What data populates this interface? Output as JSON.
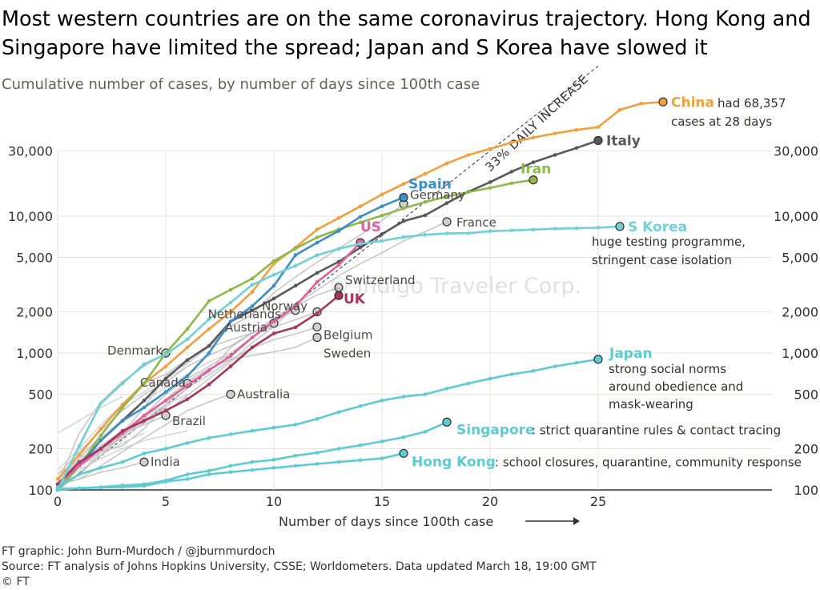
{
  "title": "Most western countries are on the same coronavirus trajectory. Hong Kong and Singapore have limited the spread; Japan and S Korea have slowed it",
  "subtitle": "Cumulative number of cases, by number of days since 100th case",
  "footer": {
    "credit": "FT graphic: John Burn-Murdoch / @jburnmurdoch",
    "source": "Source: FT analysis of Johns Hopkins University, CSSE; Worldometers. Data updated March 18, 19:00 GMT",
    "copyright": "© FT"
  },
  "watermark": "© Indigo Traveler Corp.",
  "colors": {
    "china": "#f2a03d",
    "italy": "#595959",
    "iran": "#8db84a",
    "spain": "#3b8fc4",
    "us": "#e0609b",
    "uk": "#a8355f",
    "korea": "#6fd0d8",
    "japan": "#5ccbd3",
    "grey": "#bdbdbd",
    "reference": "#333333"
  },
  "chart_data": {
    "type": "line",
    "xlabel": "Number of days since 100th case",
    "xlim": [
      0,
      35
    ],
    "ylim": [
      100,
      70000
    ],
    "y_scale": "log",
    "x_ticks": [
      0,
      5,
      10,
      15,
      20,
      25
    ],
    "y_ticks": [
      {
        "value": 100,
        "label": "100"
      },
      {
        "value": 200,
        "label": "200"
      },
      {
        "value": 500,
        "label": "500"
      },
      {
        "value": 1000,
        "label": "1,000"
      },
      {
        "value": 2000,
        "label": "2,000"
      },
      {
        "value": 5000,
        "label": "5,000"
      },
      {
        "value": 10000,
        "label": "10,000"
      },
      {
        "value": 30000,
        "label": "30,000"
      }
    ],
    "reference_line": {
      "label": "33% DAILY INCREASE",
      "growth": 1.33,
      "start": 100
    },
    "annotations": {
      "china": [
        "had 68,357",
        "cases at 28 days"
      ],
      "korea": [
        "huge testing programme,",
        "stringent case isolation"
      ],
      "japan": [
        "strong social norms",
        "around obedience and",
        "mask-wearing"
      ],
      "singapore": ": strict quarantine rules & contact tracing",
      "hongkong": ": school closures, quarantine, community response"
    },
    "series": [
      {
        "key": "china",
        "name": "China",
        "color": "#f2a03d",
        "highlight": true,
        "values": [
          120,
          180,
          280,
          420,
          600,
          800,
          1100,
          1500,
          2000,
          2800,
          4500,
          5900,
          8000,
          9700,
          11800,
          14400,
          17200,
          20400,
          24300,
          28000,
          31000,
          34500,
          37500,
          40200,
          42700,
          44700,
          59800,
          66500,
          68357
        ]
      },
      {
        "key": "italy",
        "name": "Italy",
        "color": "#595959",
        "highlight": true,
        "values": [
          100,
          150,
          230,
          320,
          450,
          650,
          890,
          1130,
          1700,
          2050,
          2500,
          3100,
          3850,
          4650,
          5900,
          7400,
          9200,
          10150,
          12460,
          15100,
          17700,
          21150,
          24750,
          27980,
          31500,
          35700
        ]
      },
      {
        "key": "iran",
        "name": "Iran",
        "color": "#8db84a",
        "highlight": true,
        "values": [
          100,
          150,
          250,
          400,
          600,
          1000,
          1500,
          2400,
          2900,
          3500,
          4700,
          5800,
          7000,
          8000,
          9000,
          10100,
          11400,
          12700,
          13900,
          15000,
          16100,
          17400,
          18400
        ]
      },
      {
        "key": "spain",
        "name": "Spain",
        "color": "#3b8fc4",
        "highlight": true,
        "values": [
          110,
          150,
          230,
          320,
          400,
          520,
          680,
          1000,
          1700,
          2200,
          3100,
          5200,
          6400,
          7800,
          9900,
          11800,
          13700
        ]
      },
      {
        "key": "us",
        "name": "US",
        "color": "#e0609b",
        "highlight": true,
        "values": [
          110,
          150,
          200,
          260,
          350,
          450,
          580,
          750,
          950,
          1300,
          1700,
          2200,
          3300,
          4400,
          6400
        ]
      },
      {
        "key": "uk",
        "name": "UK",
        "color": "#a8355f",
        "highlight": true,
        "values": [
          110,
          160,
          200,
          270,
          320,
          380,
          460,
          590,
          800,
          1100,
          1390,
          1540,
          1950,
          2630
        ]
      },
      {
        "key": "korea",
        "name": "S Korea",
        "color": "#6fd0d8",
        "highlight": true,
        "values": [
          100,
          210,
          430,
          600,
          830,
          980,
          1260,
          1770,
          2340,
          3150,
          3730,
          4340,
          5190,
          5770,
          6280,
          6600,
          7040,
          7310,
          7480,
          7510,
          7760,
          7870,
          7980,
          8090,
          8160,
          8240,
          8410
        ]
      },
      {
        "key": "japan",
        "name": "Japan",
        "color": "#5ccbd3",
        "highlight": true,
        "values": [
          105,
          130,
          145,
          160,
          185,
          200,
          220,
          240,
          255,
          270,
          285,
          300,
          330,
          370,
          410,
          450,
          480,
          500,
          550,
          600,
          650,
          700,
          740,
          800,
          850,
          900
        ]
      },
      {
        "key": "singapore",
        "name": "Singapore",
        "color": "#5ccbd3",
        "highlight": true,
        "values": [
          102,
          103,
          105,
          108,
          110,
          117,
          130,
          138,
          150,
          160,
          166,
          178,
          187,
          200,
          212,
          226,
          243,
          266,
          313
        ]
      },
      {
        "key": "hongkong",
        "name": "Hong Kong",
        "color": "#5ccbd3",
        "highlight": true,
        "values": [
          100,
          103,
          104,
          105,
          107,
          115,
          120,
          130,
          135,
          140,
          145,
          150,
          155,
          160,
          165,
          170,
          185
        ]
      },
      {
        "key": "germany",
        "name": "Germany",
        "color": "#bdbdbd",
        "highlight": false,
        "label_at_end": true,
        "values": [
          130,
          160,
          200,
          260,
          400,
          680,
          840,
          1110,
          1560,
          1910,
          2750,
          3600,
          4600,
          5800,
          7300,
          9300,
          12300
        ]
      },
      {
        "key": "france",
        "name": "France",
        "color": "#bdbdbd",
        "highlight": false,
        "label_at_end": true,
        "values": [
          100,
          130,
          190,
          210,
          280,
          420,
          610,
          720,
          1100,
          1400,
          1780,
          2280,
          2880,
          3660,
          4500,
          5400,
          6600,
          7700,
          9100
        ]
      },
      {
        "key": "switzerland",
        "name": "Switzerland",
        "color": "#bdbdbd",
        "highlight": false,
        "label_at_end": true,
        "values": [
          110,
          150,
          210,
          270,
          330,
          370,
          490,
          650,
          860,
          1190,
          1560,
          2200,
          2650,
          3010
        ]
      },
      {
        "key": "netherlands",
        "name": "Netherlands",
        "color": "#bdbdbd",
        "highlight": false,
        "label_at_end": true,
        "values": [
          130,
          190,
          270,
          380,
          500,
          610,
          800,
          960,
          1130,
          1410,
          1710,
          2050
        ]
      },
      {
        "key": "norway",
        "name": "Norway",
        "color": "#bdbdbd",
        "highlight": false,
        "label_at_end": true,
        "values": [
          110,
          170,
          250,
          400,
          600,
          700,
          900,
          1100,
          1250,
          1400,
          1550,
          1750,
          2000
        ]
      },
      {
        "key": "austria",
        "name": "Austria",
        "color": "#bdbdbd",
        "highlight": false,
        "label_at_end": true,
        "values": [
          110,
          130,
          180,
          250,
          350,
          500,
          650,
          800,
          1000,
          1300,
          1650
        ]
      },
      {
        "key": "belgium",
        "name": "Belgium",
        "color": "#bdbdbd",
        "highlight": false,
        "label_at_end": true,
        "values": [
          110,
          170,
          200,
          240,
          310,
          400,
          560,
          690,
          890,
          1090,
          1250,
          1380,
          1550
        ]
      },
      {
        "key": "sweden",
        "name": "Sweden",
        "color": "#bdbdbd",
        "highlight": false,
        "label_at_end": true,
        "values": [
          110,
          160,
          210,
          250,
          330,
          460,
          620,
          770,
          900,
          960,
          1020,
          1100,
          1300
        ]
      },
      {
        "key": "denmark",
        "name": "Denmark",
        "color": "#bdbdbd",
        "highlight": false,
        "label_at_end": true,
        "values": [
          110,
          260,
          440,
          620,
          800,
          1000
        ]
      },
      {
        "key": "canada",
        "name": "Canada",
        "color": "#bdbdbd",
        "highlight": false,
        "label_at_end": true,
        "values": [
          110,
          150,
          190,
          250,
          320,
          420,
          600
        ]
      },
      {
        "key": "australia",
        "name": "Australia",
        "color": "#bdbdbd",
        "highlight": false,
        "label_at_end": true,
        "values": [
          110,
          120,
          150,
          190,
          240,
          300,
          380,
          440,
          500
        ]
      },
      {
        "key": "brazil",
        "name": "Brazil",
        "color": "#bdbdbd",
        "highlight": false,
        "label_at_end": true,
        "values": [
          110,
          150,
          200,
          260,
          300,
          350
        ]
      },
      {
        "key": "india",
        "name": "India",
        "color": "#bdbdbd",
        "highlight": false,
        "label_at_end": true,
        "values": [
          110,
          120,
          135,
          145,
          160
        ]
      },
      {
        "key": "other1",
        "color": "#cfcfcf",
        "highlight": false,
        "values": [
          130,
          160,
          200,
          260,
          340,
          420,
          500
        ]
      },
      {
        "key": "other2",
        "color": "#cfcfcf",
        "highlight": false,
        "values": [
          120,
          150,
          180,
          220,
          260
        ]
      },
      {
        "key": "other3",
        "color": "#cfcfcf",
        "highlight": false,
        "values": [
          260,
          320,
          400,
          480
        ]
      },
      {
        "key": "other4",
        "color": "#cfcfcf",
        "highlight": false,
        "values": [
          140,
          200,
          300,
          420,
          520,
          650,
          800
        ]
      },
      {
        "key": "other5",
        "color": "#cfcfcf",
        "highlight": false,
        "values": [
          110,
          140,
          170,
          200,
          230,
          250,
          270
        ]
      },
      {
        "key": "other6",
        "color": "#cfcfcf",
        "highlight": false,
        "values": [
          120,
          170,
          240,
          330,
          450,
          560,
          700,
          860,
          1000
        ]
      }
    ]
  }
}
